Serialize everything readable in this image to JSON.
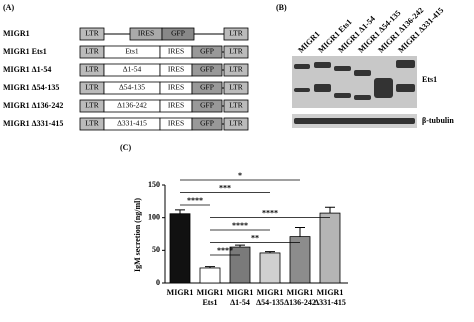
{
  "panel_a": {
    "label": "(A)",
    "constructs": [
      {
        "name": "MIGR1",
        "boxes": [
          "LTR",
          "IRES",
          "GFP",
          "LTR"
        ]
      },
      {
        "name": "MIGR1 Ets1",
        "boxes": [
          "LTR",
          "Ets1",
          "IRES",
          "GFP",
          "LTR"
        ]
      },
      {
        "name": "MIGR1 Δ1-54",
        "boxes": [
          "LTR",
          "Δ1-54",
          "IRES",
          "GFP",
          "LTR"
        ]
      },
      {
        "name": "MIGR1 Δ54-135",
        "boxes": [
          "LTR",
          "Δ54-135",
          "IRES",
          "GFP",
          "LTR"
        ]
      },
      {
        "name": "MIGR1 Δ136-242",
        "boxes": [
          "LTR",
          "Δ136-242",
          "IRES",
          "GFP",
          "LTR"
        ]
      },
      {
        "name": "MIGR1 Δ331-415",
        "boxes": [
          "LTR",
          "Δ331-415",
          "IRES",
          "GFP",
          "LTR"
        ]
      }
    ]
  },
  "panel_b": {
    "label": "(B)",
    "lanes": [
      "MIGR1",
      "MIGR1 Ets1",
      "MIGR1 Δ1-54",
      "MIGR1 Δ54-135",
      "MIGR1 Δ136-242",
      "MIGR1 Δ331-415"
    ],
    "blots": [
      "Ets1",
      "β-tubulin"
    ]
  },
  "panel_c": {
    "label": "(C)",
    "type": "bar",
    "y_label": "IgM secretion (ng/ml)",
    "categories": [
      [
        "MIGR1"
      ],
      [
        "MIGR1",
        "Ets1"
      ],
      [
        "MIGR1",
        "Δ1-54"
      ],
      [
        "MIGR1",
        "Δ54-135"
      ],
      [
        "MIGR1",
        "Δ136-242"
      ],
      [
        "MIGR1",
        "Δ331-415"
      ]
    ],
    "values": [
      106,
      23,
      55,
      46,
      71,
      107
    ],
    "errors": [
      6,
      2,
      3,
      2,
      14,
      9
    ],
    "colors": [
      "#111111",
      "#ffffff",
      "#7a7a7a",
      "#d0d0d0",
      "#8c8c8c",
      "#b5b5b5"
    ],
    "ylim": [
      0,
      150
    ],
    "yticks": [
      0,
      50,
      100,
      150
    ],
    "significance": [
      "*",
      "***",
      "****",
      "****",
      "****",
      "**",
      "****"
    ]
  }
}
